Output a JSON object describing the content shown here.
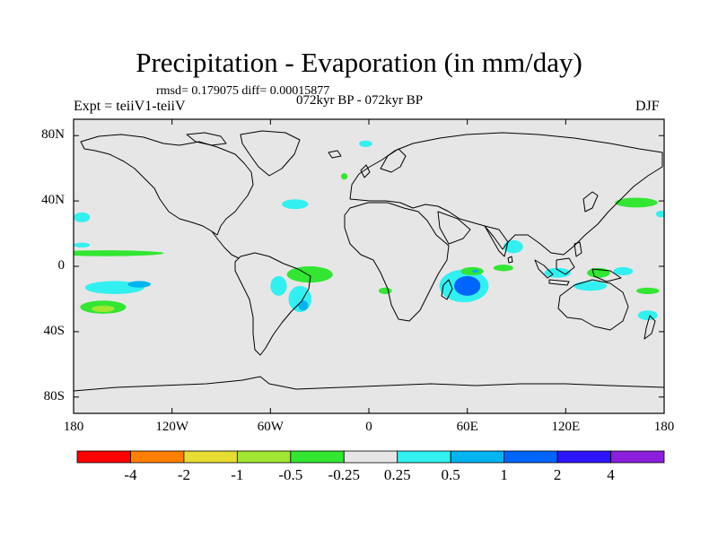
{
  "title": "Precipitation - Evaporation (in mm/day)",
  "stats": "rmsd= 0.179075 diff= 0.00015877",
  "period": "072kyr BP - 072kyr BP",
  "experiment": "Expt = teiiV1-teiiV",
  "season": "DJF",
  "map": {
    "projection": "cylindrical-equidistant",
    "lon_range": [
      -180,
      180
    ],
    "lat_range": [
      -90,
      90
    ],
    "background_color": "#e6e6e6",
    "coastline_color": "#000000"
  },
  "axes": {
    "y_ticks": [
      {
        "lat": 80,
        "label": "80N"
      },
      {
        "lat": 40,
        "label": "40N"
      },
      {
        "lat": 0,
        "label": "0"
      },
      {
        "lat": -40,
        "label": "40S"
      },
      {
        "lat": -80,
        "label": "80S"
      }
    ],
    "x_ticks": [
      {
        "lon": -180,
        "label": "180"
      },
      {
        "lon": -120,
        "label": "120W"
      },
      {
        "lon": -60,
        "label": "60W"
      },
      {
        "lon": 0,
        "label": "0"
      },
      {
        "lon": 60,
        "label": "60E"
      },
      {
        "lon": 120,
        "label": "120E"
      },
      {
        "lon": 180,
        "label": "180"
      }
    ]
  },
  "colorbar": {
    "colors": [
      "#ff0000",
      "#ff8000",
      "#e6dc32",
      "#a0e632",
      "#32e632",
      "#e6e6e6",
      "#32f0f0",
      "#00b4f0",
      "#0064ff",
      "#2d14ff",
      "#8c1edc"
    ],
    "labels": [
      "-4",
      "-2",
      "-1",
      "-0.5",
      "-0.25",
      "0.25",
      "0.5",
      "1",
      "2",
      "4"
    ]
  },
  "anomaly_patches": [
    {
      "lon": -36,
      "lat": -5,
      "rx": 14,
      "ry": 5,
      "color": "#32e632"
    },
    {
      "lon": -55,
      "lat": -12,
      "rx": 5,
      "ry": 6,
      "color": "#32f0f0"
    },
    {
      "lon": -42,
      "lat": -20,
      "rx": 7,
      "ry": 8,
      "color": "#32f0f0"
    },
    {
      "lon": -40,
      "lat": -24,
      "rx": 3,
      "ry": 3,
      "color": "#00b4f0"
    },
    {
      "lon": -155,
      "lat": -13,
      "rx": 18,
      "ry": 4,
      "color": "#32f0f0"
    },
    {
      "lon": -140,
      "lat": -11,
      "rx": 7,
      "ry": 2,
      "color": "#00b4f0"
    },
    {
      "lon": -162,
      "lat": -25,
      "rx": 14,
      "ry": 4,
      "color": "#32e632"
    },
    {
      "lon": -162,
      "lat": -26,
      "rx": 7,
      "ry": 2,
      "color": "#a0e632"
    },
    {
      "lon": -160,
      "lat": 8,
      "rx": 35,
      "ry": 1.8,
      "color": "#32e632"
    },
    {
      "lon": -175,
      "lat": 30,
      "rx": 5,
      "ry": 3,
      "color": "#32f0f0"
    },
    {
      "lon": -175,
      "lat": 13,
      "rx": 5,
      "ry": 1.5,
      "color": "#32f0f0"
    },
    {
      "lon": -45,
      "lat": 38,
      "rx": 8,
      "ry": 3,
      "color": "#32f0f0"
    },
    {
      "lon": -2,
      "lat": 75,
      "rx": 4,
      "ry": 2,
      "color": "#32f0f0"
    },
    {
      "lon": -15,
      "lat": 55,
      "rx": 2,
      "ry": 2,
      "color": "#32e632"
    },
    {
      "lon": 58,
      "lat": -12,
      "rx": 15,
      "ry": 10,
      "color": "#32f0f0"
    },
    {
      "lon": 60,
      "lat": -12,
      "rx": 8,
      "ry": 6,
      "color": "#0064ff"
    },
    {
      "lon": 48,
      "lat": -14,
      "rx": 3,
      "ry": 5,
      "color": "#32f0f0"
    },
    {
      "lon": 63,
      "lat": -3,
      "rx": 7,
      "ry": 2.5,
      "color": "#32e632"
    },
    {
      "lon": 88,
      "lat": 12,
      "rx": 6,
      "ry": 4,
      "color": "#32f0f0"
    },
    {
      "lon": 82,
      "lat": -1,
      "rx": 6,
      "ry": 2,
      "color": "#32e632"
    },
    {
      "lon": 115,
      "lat": -4,
      "rx": 8,
      "ry": 3,
      "color": "#32f0f0"
    },
    {
      "lon": 135,
      "lat": -12,
      "rx": 10,
      "ry": 3,
      "color": "#32f0f0"
    },
    {
      "lon": 140,
      "lat": -4,
      "rx": 7,
      "ry": 3,
      "color": "#32e632"
    },
    {
      "lon": 155,
      "lat": -3,
      "rx": 6,
      "ry": 2.5,
      "color": "#32f0f0"
    },
    {
      "lon": 170,
      "lat": -15,
      "rx": 7,
      "ry": 2,
      "color": "#32e632"
    },
    {
      "lon": 170,
      "lat": -30,
      "rx": 6,
      "ry": 3,
      "color": "#32f0f0"
    },
    {
      "lon": 163,
      "lat": 39,
      "rx": 13,
      "ry": 3,
      "color": "#32e632"
    },
    {
      "lon": 178,
      "lat": 32,
      "rx": 3,
      "ry": 2,
      "color": "#32f0f0"
    },
    {
      "lon": 10,
      "lat": -15,
      "rx": 4,
      "ry": 2,
      "color": "#32e632"
    },
    {
      "lon": 65,
      "lat": -3,
      "rx": 2,
      "ry": 1,
      "color": "#00b4f0"
    }
  ]
}
